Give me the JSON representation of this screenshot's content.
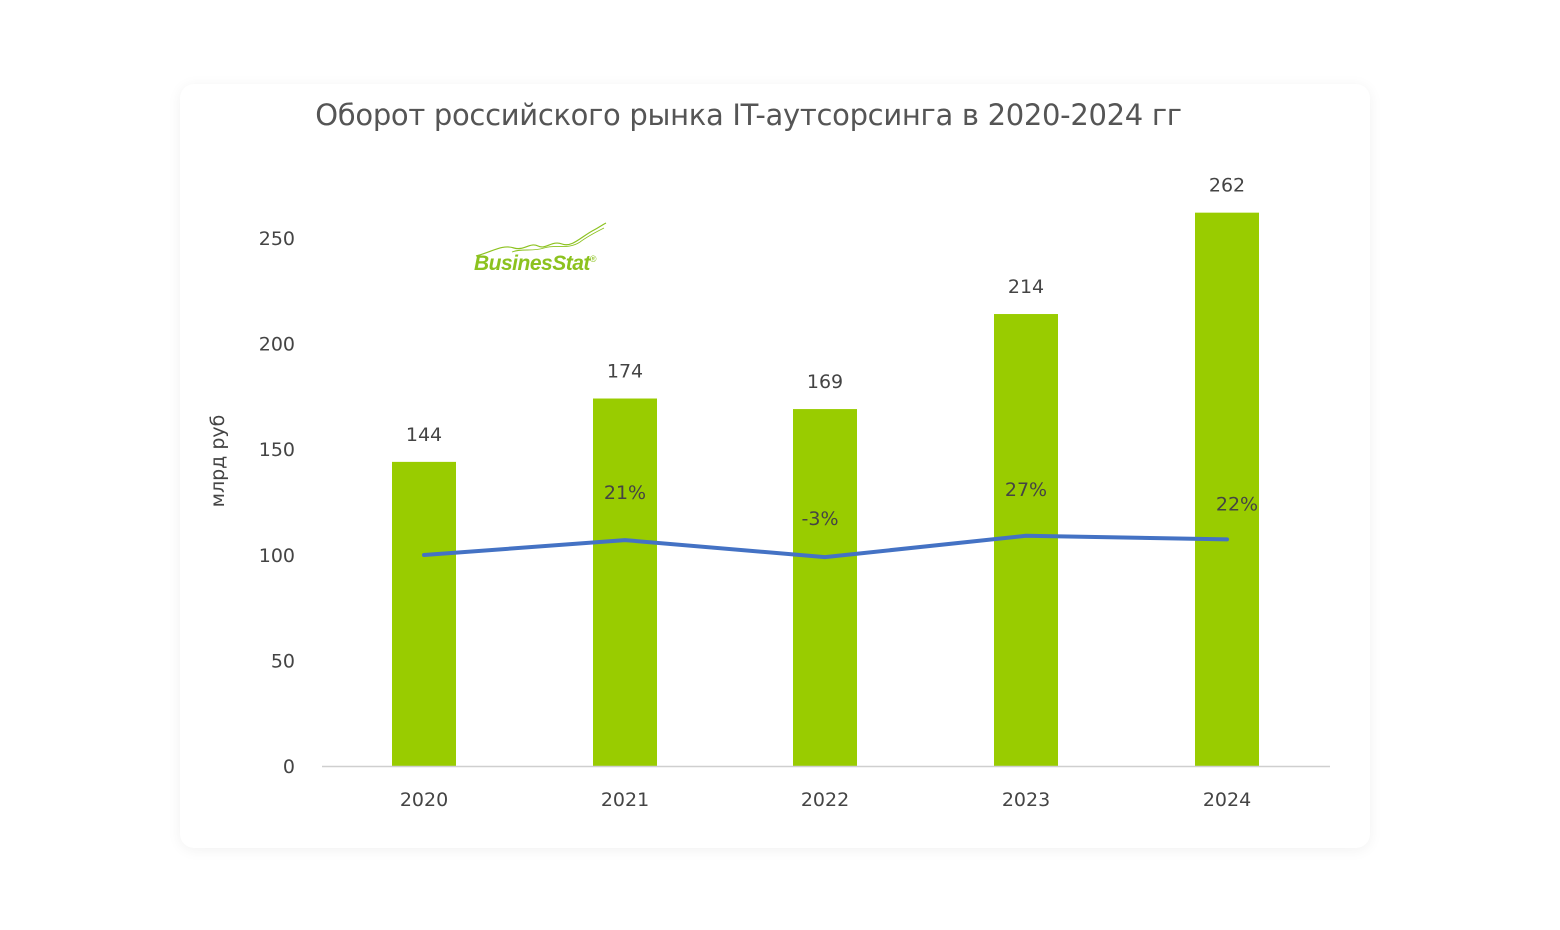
{
  "logo": {
    "text": "BusinesStat",
    "mark": "®"
  },
  "chart_data": {
    "type": "bar",
    "title": "Оборот российского рынка IT-аутсорсинга в 2020-2024 гг",
    "ylabel": "млрд  руб",
    "xlabel": "",
    "ylim": [
      0,
      262
    ],
    "yticks": [
      "0",
      "50",
      "100",
      "150",
      "200",
      "250"
    ],
    "yticks_values": [
      0,
      50,
      100,
      150,
      200,
      250
    ],
    "categories": [
      "2020",
      "2021",
      "2022",
      "2023",
      "2024"
    ],
    "values": [
      144,
      174,
      169,
      214,
      262
    ],
    "value_labels": [
      "144",
      "174",
      "169",
      "214",
      "262"
    ],
    "bar_color": "#99cc00",
    "growth": {
      "type": "line",
      "color": "#4472c4",
      "values": [
        0,
        21,
        -3,
        27,
        22
      ],
      "labels": [
        "",
        "21%",
        "-3%",
        "27%",
        "22%"
      ]
    },
    "grid": false,
    "legend": "none"
  }
}
